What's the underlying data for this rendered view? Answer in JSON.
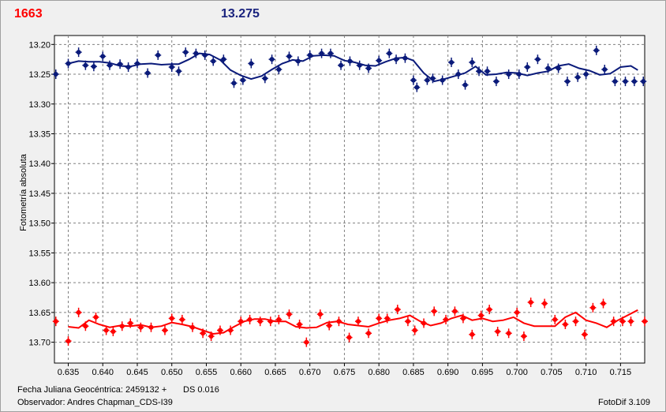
{
  "header": {
    "left_value": "1663",
    "mid_value": "13.275"
  },
  "footer": {
    "jd_label": "Fecha Juliana Geocéntrica: 2459132 +",
    "ds_label": "DS 0.016",
    "observer": "Observador: Andres Chapman_CDS-I39",
    "software": "FotoDif 3.109"
  },
  "colors": {
    "series_a": "#ff0000",
    "series_b": "#0a1a7a"
  },
  "chart_data": {
    "type": "scatter",
    "ylabel": "Fotometría absoluta",
    "xlim": [
      0.633,
      0.7185
    ],
    "ylim": [
      13.735,
      13.185
    ],
    "y_reversed": true,
    "grid": true,
    "xticks": [
      "0.635",
      "0.640",
      "0.645",
      "0.650",
      "0.655",
      "0.660",
      "0.665",
      "0.670",
      "0.675",
      "0.680",
      "0.685",
      "0.690",
      "0.695",
      "0.700",
      "0.705",
      "0.710",
      "0.715"
    ],
    "yticks": [
      "13.20",
      "13.25",
      "13.30",
      "13.35",
      "13.40",
      "13.45",
      "13.50",
      "13.55",
      "13.60",
      "13.65",
      "13.70"
    ],
    "series": [
      {
        "color": "#0a1a7a",
        "x": [
          0.6332,
          0.635,
          0.6365,
          0.6375,
          0.6387,
          0.64,
          0.641,
          0.6425,
          0.6437,
          0.645,
          0.6465,
          0.648,
          0.65,
          0.651,
          0.652,
          0.6535,
          0.6548,
          0.656,
          0.6575,
          0.659,
          0.6603,
          0.6615,
          0.6635,
          0.6645,
          0.6655,
          0.667,
          0.6683,
          0.67,
          0.6717,
          0.673,
          0.6745,
          0.6758,
          0.6772,
          0.6785,
          0.68,
          0.6815,
          0.6825,
          0.6838,
          0.685,
          0.6855,
          0.687,
          0.6878,
          0.6892,
          0.6905,
          0.6915,
          0.6925,
          0.6935,
          0.6945,
          0.6957,
          0.697,
          0.6988,
          0.7003,
          0.7015,
          0.703,
          0.7045,
          0.706,
          0.7073,
          0.7088,
          0.71,
          0.7115,
          0.7127,
          0.7142,
          0.7157,
          0.717,
          0.7183
        ],
        "y": [
          13.25,
          13.232,
          13.213,
          13.235,
          13.237,
          13.22,
          13.235,
          13.233,
          13.238,
          13.232,
          13.248,
          13.218,
          13.238,
          13.245,
          13.213,
          13.215,
          13.218,
          13.228,
          13.225,
          13.265,
          13.26,
          13.232,
          13.257,
          13.225,
          13.242,
          13.22,
          13.228,
          13.218,
          13.215,
          13.215,
          13.235,
          13.228,
          13.235,
          13.24,
          13.227,
          13.215,
          13.225,
          13.223,
          13.26,
          13.272,
          13.26,
          13.257,
          13.26,
          13.23,
          13.25,
          13.268,
          13.23,
          13.245,
          13.245,
          13.262,
          13.25,
          13.25,
          13.238,
          13.225,
          13.24,
          13.24,
          13.262,
          13.255,
          13.25,
          13.21,
          13.242,
          13.262,
          13.262,
          13.262,
          13.262
        ],
        "fit": [
          [
            0.635,
            13.232
          ],
          [
            0.6365,
            13.228
          ],
          [
            0.638,
            13.229
          ],
          [
            0.6395,
            13.229
          ],
          [
            0.641,
            13.231
          ],
          [
            0.6425,
            13.236
          ],
          [
            0.644,
            13.237
          ],
          [
            0.6455,
            13.233
          ],
          [
            0.647,
            13.232
          ],
          [
            0.6485,
            13.234
          ],
          [
            0.65,
            13.233
          ],
          [
            0.651,
            13.233
          ],
          [
            0.6525,
            13.225
          ],
          [
            0.654,
            13.215
          ],
          [
            0.6555,
            13.217
          ],
          [
            0.657,
            13.226
          ],
          [
            0.6585,
            13.243
          ],
          [
            0.66,
            13.252
          ],
          [
            0.6615,
            13.258
          ],
          [
            0.663,
            13.253
          ],
          [
            0.6645,
            13.242
          ],
          [
            0.666,
            13.232
          ],
          [
            0.6675,
            13.226
          ],
          [
            0.669,
            13.228
          ],
          [
            0.6705,
            13.219
          ],
          [
            0.672,
            13.218
          ],
          [
            0.6735,
            13.219
          ],
          [
            0.675,
            13.227
          ],
          [
            0.6765,
            13.23
          ],
          [
            0.678,
            13.235
          ],
          [
            0.6795,
            13.236
          ],
          [
            0.681,
            13.229
          ],
          [
            0.6825,
            13.223
          ],
          [
            0.6838,
            13.222
          ],
          [
            0.685,
            13.227
          ],
          [
            0.6865,
            13.248
          ],
          [
            0.688,
            13.262
          ],
          [
            0.6895,
            13.258
          ],
          [
            0.691,
            13.253
          ],
          [
            0.6925,
            13.248
          ],
          [
            0.694,
            13.237
          ],
          [
            0.6955,
            13.251
          ],
          [
            0.697,
            13.25
          ],
          [
            0.6985,
            13.247
          ],
          [
            0.7,
            13.248
          ],
          [
            0.7015,
            13.252
          ],
          [
            0.703,
            13.248
          ],
          [
            0.7045,
            13.245
          ],
          [
            0.706,
            13.236
          ],
          [
            0.7075,
            13.233
          ],
          [
            0.709,
            13.24
          ],
          [
            0.7105,
            13.244
          ],
          [
            0.712,
            13.251
          ],
          [
            0.7135,
            13.249
          ],
          [
            0.715,
            13.238
          ],
          [
            0.7165,
            13.236
          ],
          [
            0.7175,
            13.243
          ]
        ]
      },
      {
        "color": "#ff0000",
        "x": [
          0.6332,
          0.635,
          0.6365,
          0.6375,
          0.639,
          0.6405,
          0.6415,
          0.6428,
          0.644,
          0.6455,
          0.647,
          0.649,
          0.65,
          0.6515,
          0.653,
          0.6545,
          0.6557,
          0.657,
          0.6585,
          0.66,
          0.6613,
          0.6628,
          0.6643,
          0.6655,
          0.667,
          0.6685,
          0.6695,
          0.6715,
          0.6728,
          0.6742,
          0.6757,
          0.677,
          0.6785,
          0.68,
          0.6812,
          0.6827,
          0.6842,
          0.6852,
          0.6865,
          0.688,
          0.6897,
          0.691,
          0.6922,
          0.6935,
          0.6948,
          0.696,
          0.6972,
          0.6988,
          0.7,
          0.701,
          0.702,
          0.704,
          0.7055,
          0.707,
          0.7085,
          0.7098,
          0.711,
          0.7125,
          0.714,
          0.7153,
          0.7165,
          0.7185
        ],
        "y": [
          13.665,
          13.698,
          13.65,
          13.673,
          13.658,
          13.68,
          13.682,
          13.673,
          13.668,
          13.675,
          13.675,
          13.68,
          13.66,
          13.662,
          13.675,
          13.685,
          13.69,
          13.68,
          13.68,
          13.665,
          13.662,
          13.665,
          13.665,
          13.662,
          13.653,
          13.67,
          13.7,
          13.653,
          13.672,
          13.665,
          13.692,
          13.665,
          13.685,
          13.66,
          13.66,
          13.645,
          13.665,
          13.68,
          13.668,
          13.648,
          13.662,
          13.648,
          13.66,
          13.687,
          13.655,
          13.645,
          13.682,
          13.685,
          13.65,
          13.69,
          13.633,
          13.635,
          13.662,
          13.67,
          13.665,
          13.687,
          13.642,
          13.635,
          13.665,
          13.665,
          13.665,
          13.665
        ],
        "fit": [
          [
            0.635,
            13.674
          ],
          [
            0.6365,
            13.676
          ],
          [
            0.638,
            13.663
          ],
          [
            0.6395,
            13.67
          ],
          [
            0.641,
            13.675
          ],
          [
            0.6425,
            13.672
          ],
          [
            0.644,
            13.673
          ],
          [
            0.6455,
            13.671
          ],
          [
            0.647,
            13.675
          ],
          [
            0.6485,
            13.673
          ],
          [
            0.65,
            13.667
          ],
          [
            0.6515,
            13.67
          ],
          [
            0.653,
            13.674
          ],
          [
            0.6545,
            13.68
          ],
          [
            0.656,
            13.686
          ],
          [
            0.6575,
            13.684
          ],
          [
            0.659,
            13.674
          ],
          [
            0.6605,
            13.665
          ],
          [
            0.662,
            13.661
          ],
          [
            0.6635,
            13.661
          ],
          [
            0.665,
            13.665
          ],
          [
            0.6665,
            13.665
          ],
          [
            0.668,
            13.674
          ],
          [
            0.6695,
            13.676
          ],
          [
            0.671,
            13.675
          ],
          [
            0.6725,
            13.667
          ],
          [
            0.674,
            13.665
          ],
          [
            0.6755,
            13.67
          ],
          [
            0.677,
            13.672
          ],
          [
            0.6785,
            13.674
          ],
          [
            0.68,
            13.668
          ],
          [
            0.6815,
            13.663
          ],
          [
            0.683,
            13.66
          ],
          [
            0.6845,
            13.655
          ],
          [
            0.686,
            13.665
          ],
          [
            0.6875,
            13.672
          ],
          [
            0.689,
            13.668
          ],
          [
            0.6905,
            13.66
          ],
          [
            0.692,
            13.655
          ],
          [
            0.6935,
            13.663
          ],
          [
            0.695,
            13.66
          ],
          [
            0.6965,
            13.665
          ],
          [
            0.698,
            13.663
          ],
          [
            0.6995,
            13.658
          ],
          [
            0.701,
            13.668
          ],
          [
            0.7025,
            13.673
          ],
          [
            0.704,
            13.673
          ],
          [
            0.7055,
            13.673
          ],
          [
            0.707,
            13.658
          ],
          [
            0.7085,
            13.65
          ],
          [
            0.71,
            13.663
          ],
          [
            0.7115,
            13.668
          ],
          [
            0.713,
            13.675
          ],
          [
            0.7145,
            13.664
          ],
          [
            0.716,
            13.655
          ],
          [
            0.7175,
            13.646
          ]
        ]
      }
    ]
  }
}
